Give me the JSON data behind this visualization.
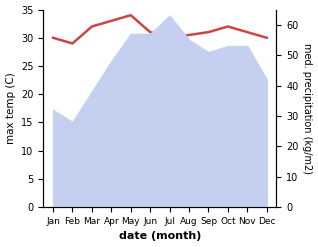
{
  "months": [
    "Jan",
    "Feb",
    "Mar",
    "Apr",
    "May",
    "Jun",
    "Jul",
    "Aug",
    "Sep",
    "Oct",
    "Nov",
    "Dec"
  ],
  "temperature": [
    30.0,
    29.0,
    32.0,
    33.0,
    34.0,
    31.0,
    30.0,
    30.5,
    31.0,
    32.0,
    31.0,
    30.0
  ],
  "precipitation": [
    32.0,
    28.0,
    38.0,
    48.0,
    57.0,
    57.0,
    63.0,
    55.0,
    51.0,
    53.0,
    53.0,
    42.0
  ],
  "temp_color": "#cc4444",
  "precip_fill_color": "#c5cff0",
  "temp_ylim": [
    0,
    35
  ],
  "precip_ylim": [
    0,
    65
  ],
  "temp_yticks": [
    0,
    5,
    10,
    15,
    20,
    25,
    30,
    35
  ],
  "precip_yticks": [
    0,
    10,
    20,
    30,
    40,
    50,
    60
  ],
  "xlabel": "date (month)",
  "ylabel_left": "max temp (C)",
  "ylabel_right": "med. precipitation (kg/m2)"
}
